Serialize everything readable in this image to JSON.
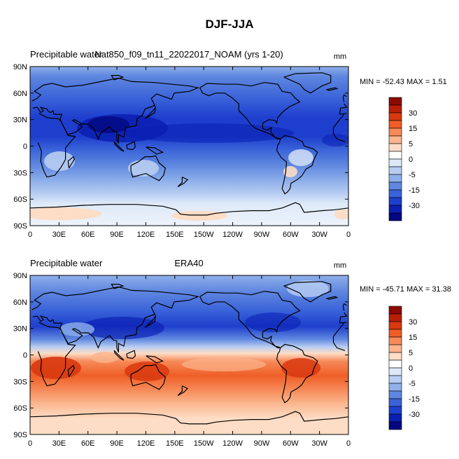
{
  "figure_title": "DJF-JJA",
  "chart_data": [
    {
      "type": "heatmap",
      "title_left": "Precipitable water",
      "title_center": "Nat850_f09_tn11_22022017_NOAM (yrs 1-20)",
      "units": "mm",
      "stats": "MIN = -52.43 MAX =   1.51",
      "min": -52.43,
      "max": 1.51,
      "y_ticks": [
        "90N",
        "60N",
        "30N",
        "0",
        "30S",
        "60S",
        "90S"
      ],
      "x_ticks": [
        "0",
        "30E",
        "60E",
        "90E",
        "120E",
        "150E",
        "150W",
        "120W",
        "90W",
        "60W",
        "30W",
        "0"
      ],
      "colorbar_labels": [
        "30",
        "15",
        "5",
        "0",
        "-5",
        "-15",
        "-30"
      ]
    },
    {
      "type": "heatmap",
      "title_left": "Precipitable water",
      "title_center": "ERA40",
      "units": "mm",
      "stats": "MIN = -45.71 MAX =  31.38",
      "min": -45.71,
      "max": 31.38,
      "y_ticks": [
        "90N",
        "60N",
        "30N",
        "0",
        "30S",
        "60S",
        "90S"
      ],
      "x_ticks": [
        "0",
        "30E",
        "60E",
        "90E",
        "120E",
        "150E",
        "150W",
        "120W",
        "90W",
        "60W",
        "30W",
        "0"
      ],
      "colorbar_labels": [
        "30",
        "15",
        "5",
        "0",
        "-5",
        "-15",
        "-30"
      ]
    }
  ],
  "colorbar_colors": [
    "#8c0a00",
    "#b81f06",
    "#d8380f",
    "#ef5e27",
    "#f68a58",
    "#fbb48c",
    "#fdddc6",
    "#ffffff",
    "#dde9f8",
    "#b8cdf2",
    "#8fb0ea",
    "#5f87df",
    "#3a63d9",
    "#1e3fcd",
    "#0a1fb2",
    "#030780"
  ]
}
